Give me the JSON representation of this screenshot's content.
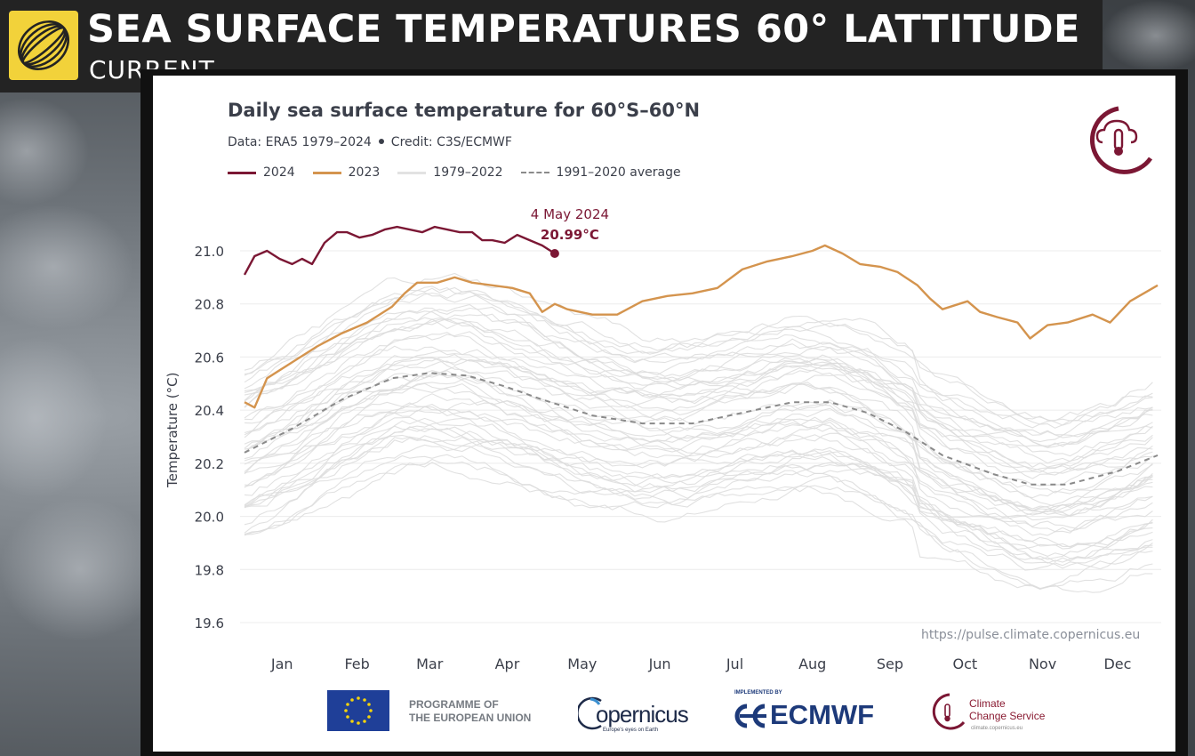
{
  "banner": {
    "title": "SEA SURFACE TEMPERATURES 60°  LATTITUDE",
    "subtitle": "CURRENT"
  },
  "chart_data": {
    "type": "line",
    "title": "Daily sea surface temperature for 60°S–60°N",
    "subtitle_parts": [
      "Data: ERA5 1979–2024",
      "Credit: C3S/ECMWF"
    ],
    "xlabel": "",
    "ylabel": "Temperature (°C)",
    "x_tick_labels": [
      "Jan",
      "Feb",
      "Mar",
      "Apr",
      "May",
      "Jun",
      "Jul",
      "Aug",
      "Sep",
      "Oct",
      "Nov",
      "Dec"
    ],
    "y_ticks": [
      19.6,
      19.8,
      20.0,
      20.2,
      20.4,
      20.6,
      20.8,
      21.0
    ],
    "y_tick_labels": [
      "19.6",
      "19.8",
      "20.0",
      "20.2",
      "20.4",
      "20.6",
      "20.8",
      "21.0"
    ],
    "xlim": [
      1,
      366
    ],
    "ylim": [
      19.6,
      21.1
    ],
    "grid": "horizontal",
    "legend_position": "top-left",
    "annotation": {
      "date": "4 May 2024",
      "value_label": "20.99°C",
      "x": 125,
      "y": 20.99
    },
    "source": "https://pulse.climate.copernicus.eu",
    "series": [
      {
        "name": "2024",
        "color": "#7b1734",
        "style": "solid",
        "points": [
          [
            1,
            20.91
          ],
          [
            5,
            20.98
          ],
          [
            10,
            21.0
          ],
          [
            15,
            20.97
          ],
          [
            20,
            20.95
          ],
          [
            24,
            20.97
          ],
          [
            28,
            20.95
          ],
          [
            33,
            21.03
          ],
          [
            38,
            21.07
          ],
          [
            42,
            21.07
          ],
          [
            47,
            21.05
          ],
          [
            52,
            21.06
          ],
          [
            57,
            21.08
          ],
          [
            62,
            21.09
          ],
          [
            67,
            21.08
          ],
          [
            72,
            21.07
          ],
          [
            77,
            21.09
          ],
          [
            82,
            21.08
          ],
          [
            87,
            21.07
          ],
          [
            92,
            21.07
          ],
          [
            96,
            21.04
          ],
          [
            100,
            21.04
          ],
          [
            105,
            21.03
          ],
          [
            110,
            21.06
          ],
          [
            115,
            21.04
          ],
          [
            120,
            21.02
          ],
          [
            125,
            20.99
          ]
        ]
      },
      {
        "name": "2023",
        "color": "#d4944e",
        "style": "solid",
        "points": [
          [
            1,
            20.43
          ],
          [
            5,
            20.41
          ],
          [
            10,
            20.52
          ],
          [
            20,
            20.58
          ],
          [
            30,
            20.64
          ],
          [
            40,
            20.69
          ],
          [
            50,
            20.73
          ],
          [
            60,
            20.79
          ],
          [
            65,
            20.84
          ],
          [
            70,
            20.88
          ],
          [
            78,
            20.88
          ],
          [
            85,
            20.9
          ],
          [
            92,
            20.88
          ],
          [
            100,
            20.87
          ],
          [
            108,
            20.86
          ],
          [
            115,
            20.84
          ],
          [
            120,
            20.77
          ],
          [
            125,
            20.8
          ],
          [
            130,
            20.78
          ],
          [
            140,
            20.76
          ],
          [
            150,
            20.76
          ],
          [
            160,
            20.81
          ],
          [
            170,
            20.83
          ],
          [
            180,
            20.84
          ],
          [
            190,
            20.86
          ],
          [
            200,
            20.93
          ],
          [
            210,
            20.96
          ],
          [
            220,
            20.98
          ],
          [
            228,
            21.0
          ],
          [
            233,
            21.02
          ],
          [
            240,
            20.99
          ],
          [
            247,
            20.95
          ],
          [
            255,
            20.94
          ],
          [
            262,
            20.92
          ],
          [
            270,
            20.87
          ],
          [
            275,
            20.82
          ],
          [
            280,
            20.78
          ],
          [
            290,
            20.81
          ],
          [
            295,
            20.77
          ],
          [
            302,
            20.75
          ],
          [
            310,
            20.73
          ],
          [
            315,
            20.67
          ],
          [
            322,
            20.72
          ],
          [
            330,
            20.73
          ],
          [
            340,
            20.76
          ],
          [
            347,
            20.73
          ],
          [
            355,
            20.81
          ],
          [
            366,
            20.87
          ]
        ]
      },
      {
        "name": "1991–2020 average",
        "color": "#8a8a8a",
        "style": "dashed",
        "points": [
          [
            1,
            20.24
          ],
          [
            20,
            20.33
          ],
          [
            40,
            20.44
          ],
          [
            60,
            20.52
          ],
          [
            75,
            20.54
          ],
          [
            90,
            20.53
          ],
          [
            105,
            20.49
          ],
          [
            120,
            20.44
          ],
          [
            140,
            20.38
          ],
          [
            160,
            20.35
          ],
          [
            180,
            20.35
          ],
          [
            200,
            20.39
          ],
          [
            220,
            20.43
          ],
          [
            235,
            20.43
          ],
          [
            250,
            20.39
          ],
          [
            265,
            20.32
          ],
          [
            280,
            20.23
          ],
          [
            300,
            20.16
          ],
          [
            315,
            20.12
          ],
          [
            330,
            20.12
          ],
          [
            350,
            20.17
          ],
          [
            366,
            20.23
          ]
        ]
      }
    ],
    "background_series": {
      "name": "1979–2022",
      "color": "#dcdcdc",
      "count": 44
    }
  },
  "footer": {
    "eu_line1": "PROGRAMME OF",
    "eu_line2": "THE EUROPEAN UNION",
    "copernicus": "opernicus",
    "copernicus_tagline": "Europe's eyes on Earth",
    "ecmwf_implemented": "IMPLEMENTED BY",
    "ecmwf": "ECMWF",
    "c3s_line1": "Climate",
    "c3s_line2": "Change Service",
    "c3s_url": "climate.copernicus.eu"
  }
}
